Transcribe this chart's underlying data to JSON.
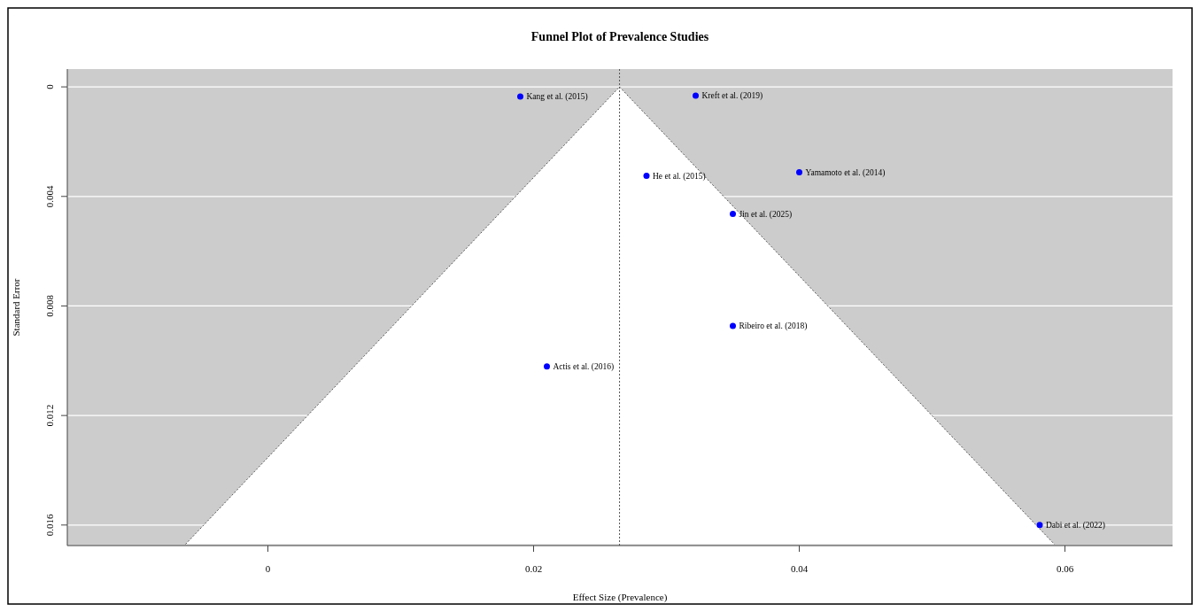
{
  "chart_data": {
    "type": "scatter",
    "title": "Funnel Plot of Prevalence Studies",
    "xlabel": "Effect Size (Prevalence)",
    "ylabel": "Standard Error",
    "xlim": [
      -0.0151,
      0.0681
    ],
    "xticks": [
      0,
      0.02,
      0.04,
      0.06
    ],
    "ylim": [
      0.01675,
      -0.00065
    ],
    "yticks": [
      0,
      0.004,
      0.008,
      0.012,
      0.016
    ],
    "grid": "y",
    "marker": "circle",
    "series": [
      {
        "type": "line",
        "marker": "none",
        "color": "#555555",
        "line_style": "dotted",
        "x": [
          -0.0062,
          0.02647,
          0.0592
        ],
        "values": [
          0.0167,
          0,
          0.0167
        ]
      },
      {
        "color": "#0000ff",
        "x": [
          0.019,
          0.0322,
          0.0285,
          0.04,
          0.035,
          0.035,
          0.021,
          0.0581
        ],
        "values": [
          0.00035,
          0.00032,
          0.00325,
          0.00312,
          0.00464,
          0.00873,
          0.01021,
          0.016
        ]
      }
    ],
    "ref_lines": [
      {
        "axis": "x",
        "value": 0.02647,
        "color": "#555555",
        "line_style": "dotted"
      }
    ],
    "annotations": [
      {
        "text": "Kang et al. (2015)",
        "x": 0.019,
        "y": 0.00035
      },
      {
        "text": "Kreft et al. (2019)",
        "x": 0.0322,
        "y": 0.00032
      },
      {
        "text": "He et al. (2015)",
        "x": 0.0285,
        "y": 0.00325
      },
      {
        "text": "Yamamoto et al. (2014)",
        "x": 0.04,
        "y": 0.00312
      },
      {
        "text": "Jin et al. (2025)",
        "x": 0.035,
        "y": 0.00464
      },
      {
        "text": "Ribeiro et al. (2018)",
        "x": 0.035,
        "y": 0.00873
      },
      {
        "text": "Actis et al. (2016)",
        "x": 0.021,
        "y": 0.01021
      },
      {
        "text": "Dabi et al. (2022)",
        "x": 0.0581,
        "y": 0.016
      }
    ]
  }
}
